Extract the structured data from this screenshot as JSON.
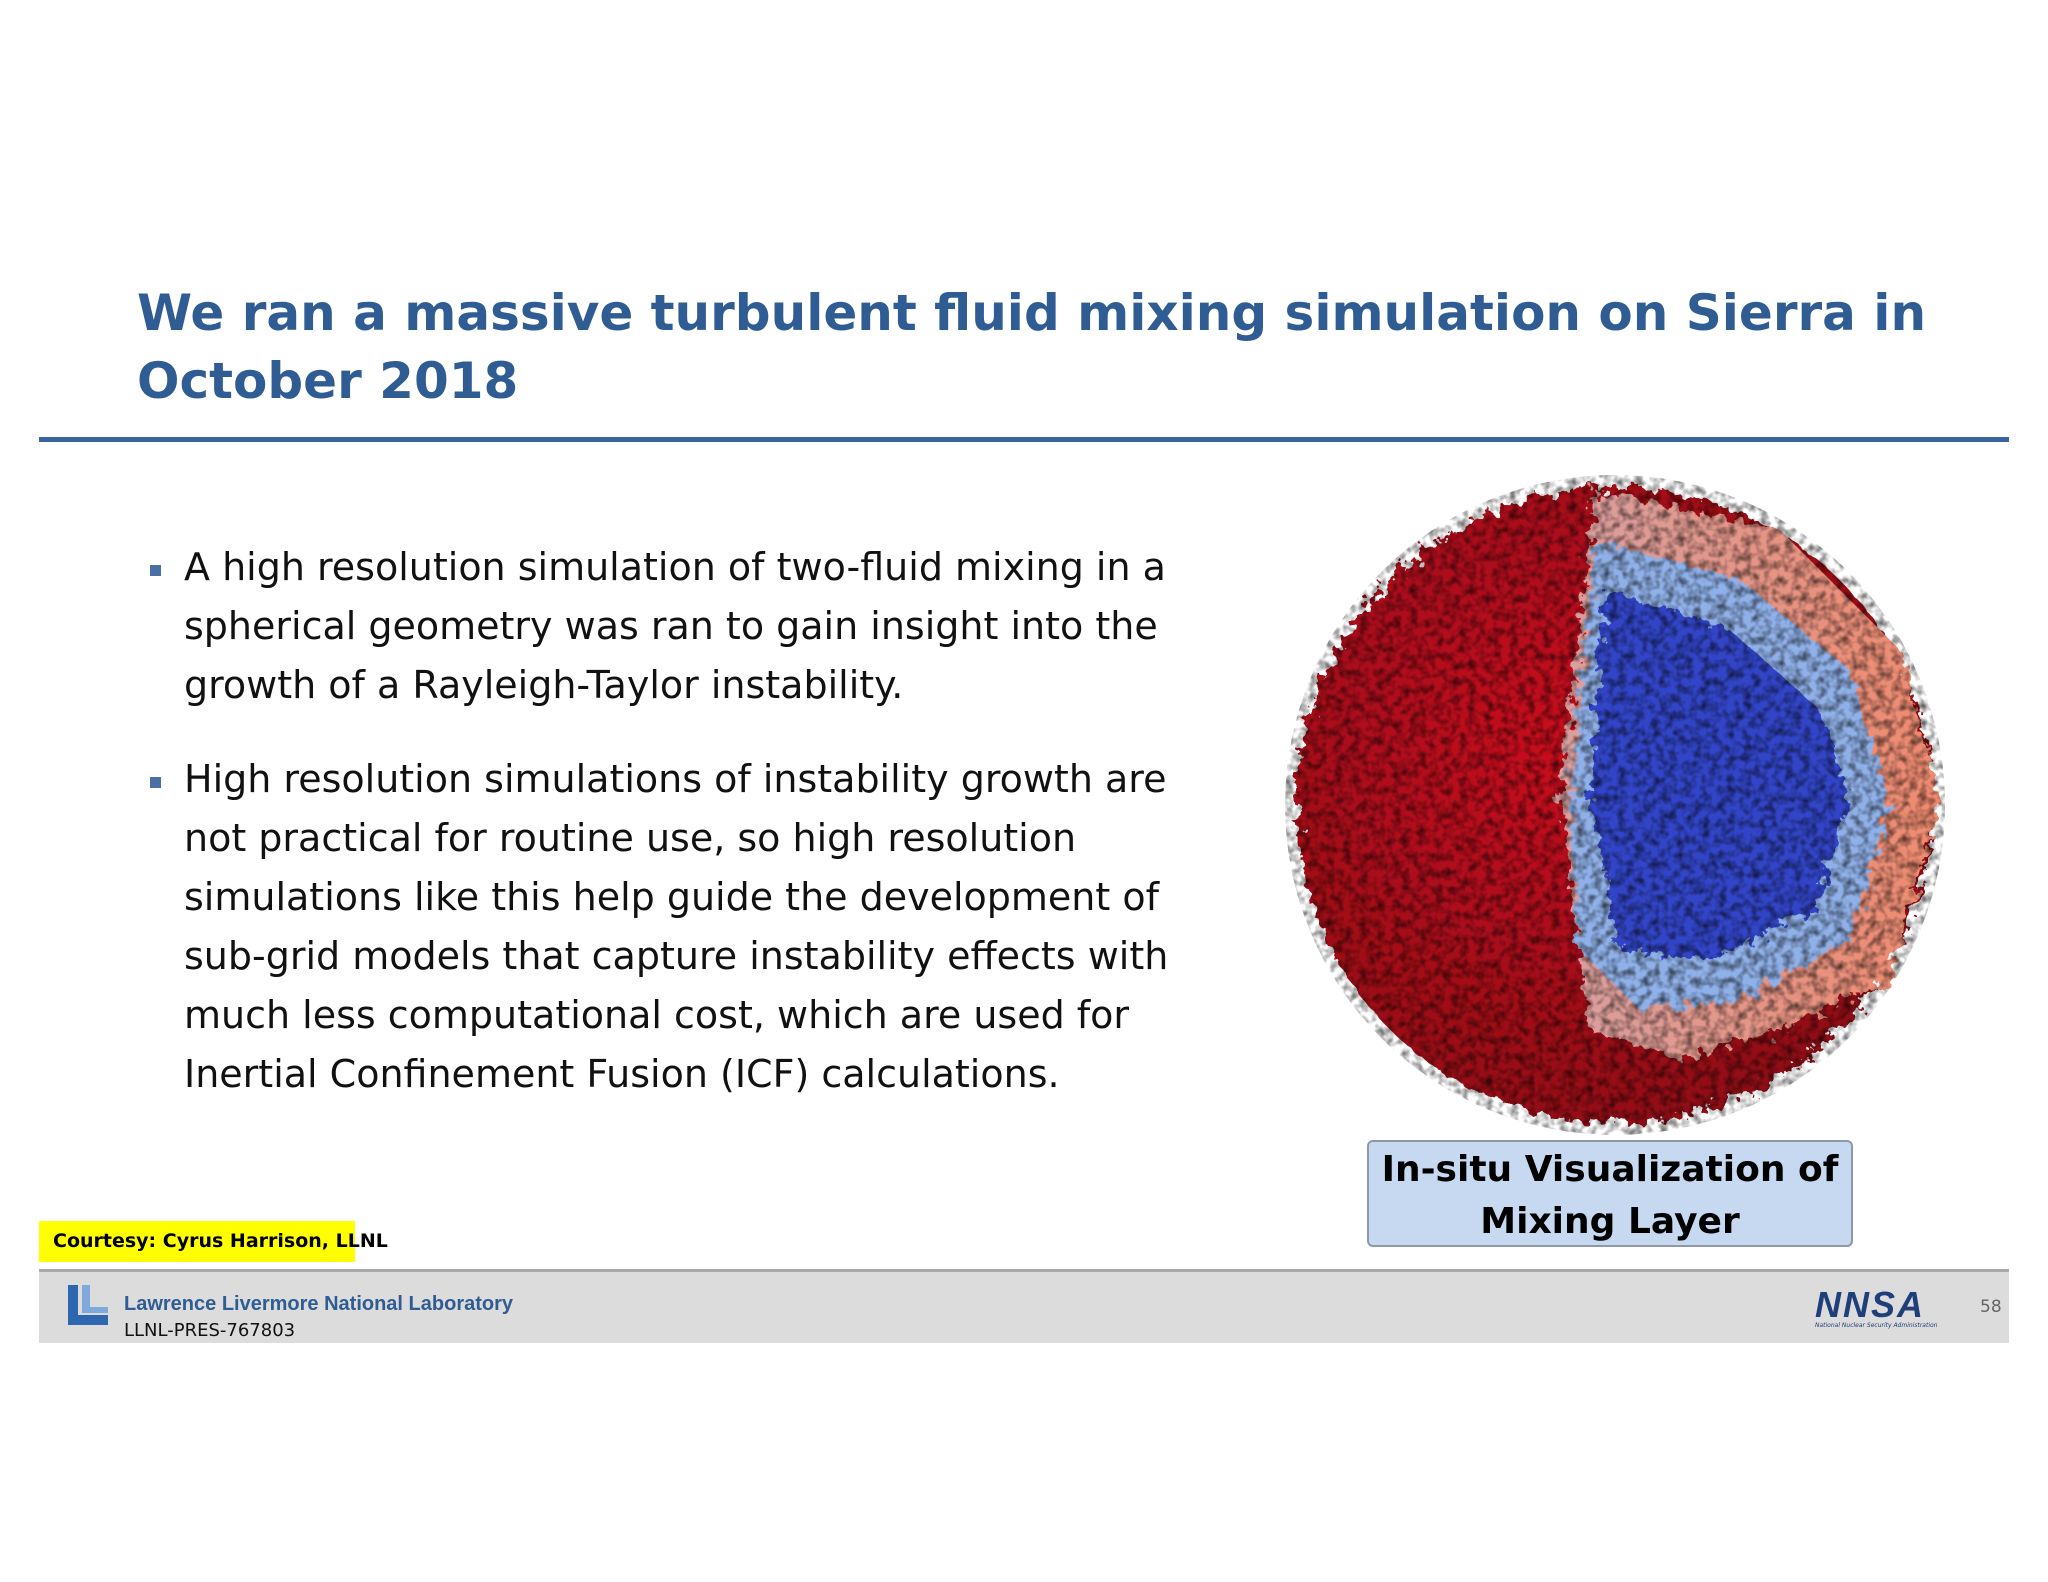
{
  "header": {
    "title_lines": [
      "We ran a massive turbulent fluid mixing simulation on Sierra in",
      "October 2018"
    ]
  },
  "bullets": [
    {
      "lines": [
        "A high resolution simulation of two-fluid mixing in a",
        "spherical geometry was ran to gain insight into the",
        "growth of a Rayleigh-Taylor instability."
      ]
    },
    {
      "lines": [
        "High resolution simulations of instability growth are",
        "not practical for routine use, so high resolution",
        "simulations like this help guide the development of",
        "sub-grid models that capture instability effects with",
        "much less computational cost, which are used for",
        "Inertial Confinement Fusion (ICF) calculations."
      ]
    }
  ],
  "caption": {
    "lines": [
      "In-situ Visualization of",
      "Mixing Layer"
    ]
  },
  "courtesy": "Courtesy: Cyrus Harrison, LLNL",
  "footer": {
    "lab_name": "Lawrence Livermore National Laboratory",
    "doc_id": "LLNL-PRES-767803",
    "agency_logo": "NNSA",
    "agency_name": "National Nuclear Security Administration",
    "page": "58"
  }
}
